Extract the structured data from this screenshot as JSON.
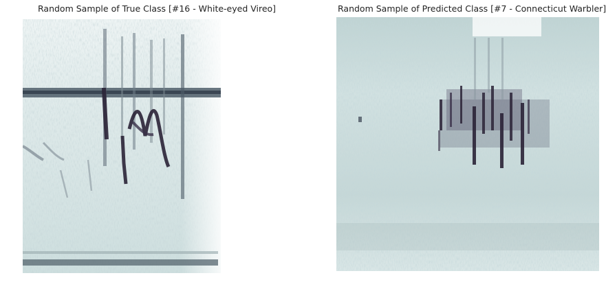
{
  "panels": [
    {
      "title": "Random Sample of True Class [#16 - White-eyed Vireo]",
      "image": "spectrogram"
    },
    {
      "title": "Random Sample of Predicted Class [#7 - Connecticut Warbler]",
      "image": "spectrogram"
    }
  ],
  "colors": {
    "background": "#ffffff",
    "spectrogram_light": "#dbe9e8",
    "spectrogram_mid": "#b7cccd",
    "spectrogram_dark": "#2a2236"
  }
}
